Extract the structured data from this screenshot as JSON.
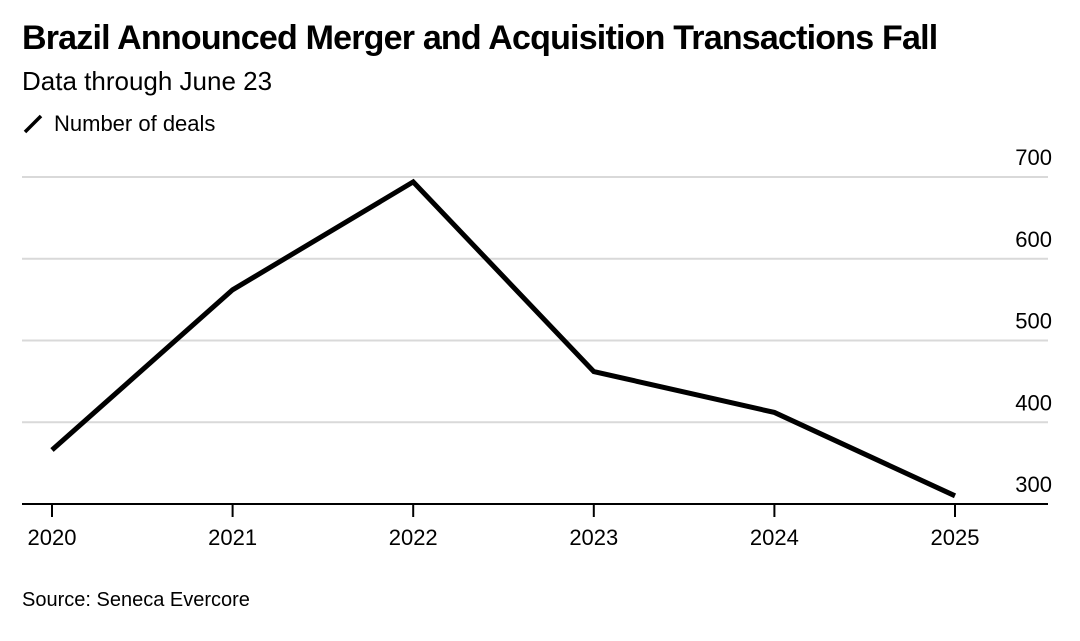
{
  "title": "Brazil Announced Merger and Acquisition Transactions Fall",
  "subtitle": "Data through June 23",
  "source": "Source: Seneca Evercore",
  "chart_data": {
    "type": "line",
    "title": "Brazil Announced Merger and Acquisition Transactions Fall",
    "subtitle": "Data through June 23",
    "xlabel": "",
    "ylabel": "",
    "categories": [
      "2020",
      "2021",
      "2022",
      "2023",
      "2024",
      "2025"
    ],
    "series": [
      {
        "name": "Number of deals",
        "values": [
          366,
          562,
          694,
          462,
          412,
          310
        ],
        "color": "#000000"
      }
    ],
    "ylim": [
      300,
      700
    ],
    "yticks": [
      300,
      400,
      500,
      600,
      700
    ],
    "grid": true,
    "legend_position": "top-left",
    "colors": {
      "line": "#000000",
      "grid": "#d9d9d9",
      "axis": "#000000"
    }
  }
}
